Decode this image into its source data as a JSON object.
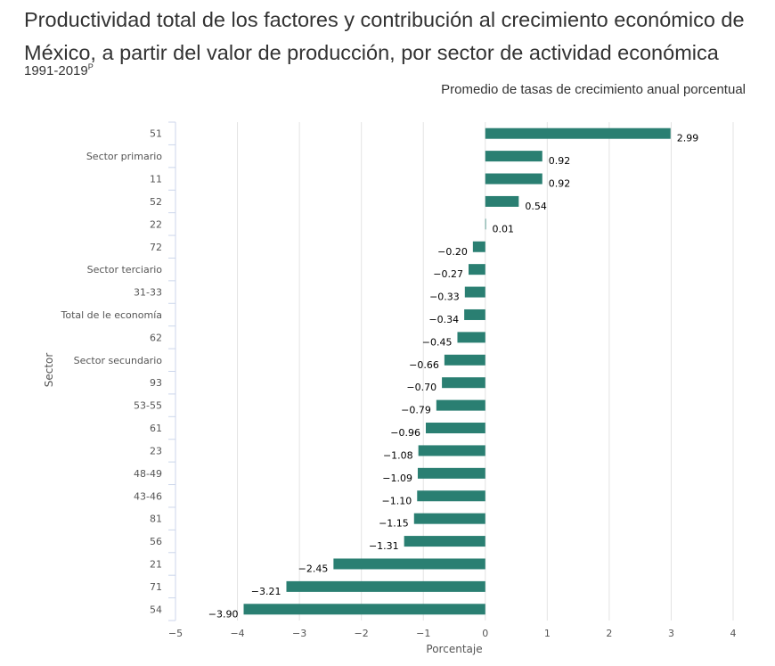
{
  "header": {
    "title": "Productividad total de los factores y contribución al crecimiento económico de México, a partir del valor de producción, por sector de actividad económica",
    "subtitle_main": "1991-2019",
    "subtitle_sup": "P",
    "unit_label": "Promedio de tasas de crecimiento anual porcentual"
  },
  "chart_data": {
    "type": "bar",
    "orientation": "horizontal",
    "xlabel": "Porcentaje",
    "ylabel": "Sector",
    "xlim": [
      -5,
      4
    ],
    "xticks": [
      -5,
      -4,
      -3,
      -2,
      -1,
      0,
      1,
      2,
      3,
      4
    ],
    "xtick_labels": [
      "−5",
      "−4",
      "−3",
      "−2",
      "−1",
      "0",
      "1",
      "2",
      "3",
      "4"
    ],
    "grid": true,
    "bar_color": "#2a7f72",
    "categories": [
      "51",
      "Sector primario",
      "11",
      "52",
      "22",
      "72",
      "Sector terciario",
      "31-33",
      "Total de le economía",
      "62",
      "Sector secundario",
      "93",
      "53-55",
      "61",
      "23",
      "48-49",
      "43-46",
      "81",
      "56",
      "21",
      "71",
      "54"
    ],
    "values": [
      2.99,
      0.92,
      0.92,
      0.54,
      0.01,
      -0.2,
      -0.27,
      -0.33,
      -0.34,
      -0.45,
      -0.66,
      -0.7,
      -0.79,
      -0.96,
      -1.08,
      -1.09,
      -1.1,
      -1.15,
      -1.31,
      -2.45,
      -3.21,
      -3.9
    ],
    "value_labels": [
      "2.99",
      "0.92",
      "0.92",
      "0.54",
      "0.01",
      "−0.20",
      "−0.27",
      "−0.33",
      "−0.34",
      "−0.45",
      "−0.66",
      "−0.70",
      "−0.79",
      "−0.96",
      "−1.08",
      "−1.09",
      "−1.10",
      "−1.15",
      "−1.31",
      "−2.45",
      "−3.21",
      "−3.90"
    ]
  }
}
